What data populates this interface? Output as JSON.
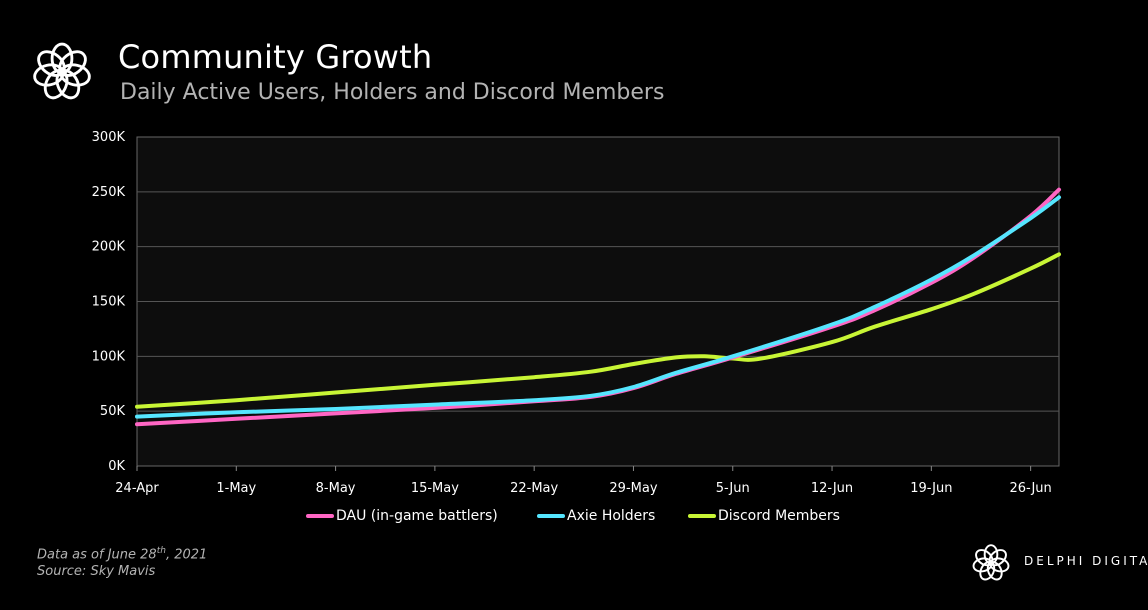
{
  "header": {
    "title": "Community Growth",
    "subtitle": "Daily Active Users, Holders and Discord Members"
  },
  "footer": {
    "date_note_prefix": "Data as of June 28",
    "date_note_sup": "th",
    "date_note_suffix": ", 2021",
    "source": "Source:  Sky Mavis"
  },
  "brand": {
    "name": "DELPHI DIGITAL",
    "logo_icon": "delphi-flower-icon"
  },
  "colors": {
    "background": "#000000",
    "plot_background": "#0d0d0d",
    "grid": "#555555"
  },
  "chart_data": {
    "type": "line",
    "title": "Community Growth",
    "subtitle": "Daily Active Users, Holders and Discord Members",
    "xlabel": "",
    "ylabel": "",
    "x_ticks": [
      "24-Apr",
      "1-May",
      "8-May",
      "15-May",
      "22-May",
      "29-May",
      "5-Jun",
      "12-Jun",
      "19-Jun",
      "26-Jun"
    ],
    "x_range": [
      "24-Apr",
      "28-Jun"
    ],
    "y_ticks": [
      "0K",
      "50K",
      "100K",
      "150K",
      "200K",
      "250K",
      "300K"
    ],
    "ylim": [
      0,
      300000
    ],
    "grid": true,
    "legend_position": "bottom",
    "series": [
      {
        "name": "DAU (in-game battlers)",
        "color": "#ff66c4",
        "points": [
          [
            "24-Apr",
            38000
          ],
          [
            "1-May",
            43000
          ],
          [
            "8-May",
            48000
          ],
          [
            "15-May",
            53000
          ],
          [
            "22-May",
            59000
          ],
          [
            "26-May",
            63000
          ],
          [
            "29-May",
            71000
          ],
          [
            "1-Jun",
            84000
          ],
          [
            "5-Jun",
            99000
          ],
          [
            "12-Jun",
            127000
          ],
          [
            "15-Jun",
            142000
          ],
          [
            "19-Jun",
            167000
          ],
          [
            "22-Jun",
            190000
          ],
          [
            "26-Jun",
            228000
          ],
          [
            "28-Jun",
            252000
          ]
        ]
      },
      {
        "name": "Axie Holders",
        "color": "#55e6ff",
        "points": [
          [
            "24-Apr",
            45000
          ],
          [
            "1-May",
            49000
          ],
          [
            "8-May",
            52000
          ],
          [
            "15-May",
            56000
          ],
          [
            "22-May",
            60000
          ],
          [
            "26-May",
            64000
          ],
          [
            "29-May",
            72000
          ],
          [
            "1-Jun",
            85000
          ],
          [
            "5-Jun",
            100000
          ],
          [
            "12-Jun",
            129000
          ],
          [
            "15-Jun",
            145000
          ],
          [
            "19-Jun",
            170000
          ],
          [
            "22-Jun",
            192000
          ],
          [
            "26-Jun",
            226000
          ],
          [
            "28-Jun",
            245000
          ]
        ]
      },
      {
        "name": "Discord Members",
        "color": "#c8f535",
        "points": [
          [
            "24-Apr",
            54000
          ],
          [
            "1-May",
            60000
          ],
          [
            "8-May",
            67000
          ],
          [
            "15-May",
            74000
          ],
          [
            "22-May",
            81000
          ],
          [
            "26-May",
            86000
          ],
          [
            "29-May",
            93000
          ],
          [
            "1-Jun",
            99000
          ],
          [
            "3-Jun",
            100000
          ],
          [
            "5-Jun",
            98000
          ],
          [
            "7-Jun",
            98000
          ],
          [
            "12-Jun",
            113000
          ],
          [
            "15-Jun",
            127000
          ],
          [
            "19-Jun",
            143000
          ],
          [
            "22-Jun",
            157000
          ],
          [
            "26-Jun",
            180000
          ],
          [
            "28-Jun",
            193000
          ]
        ]
      }
    ]
  }
}
